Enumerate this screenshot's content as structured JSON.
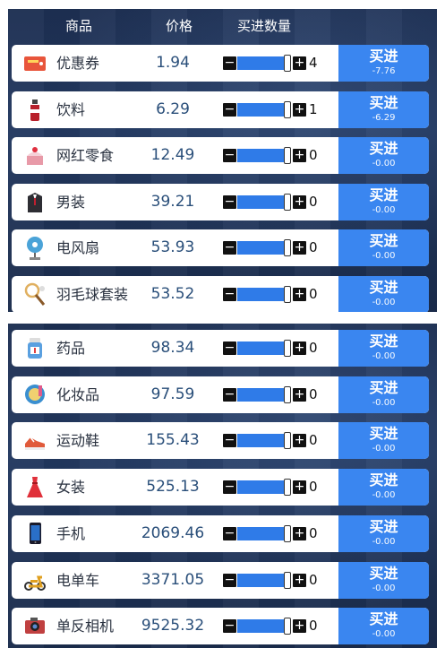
{
  "header": {
    "name": "商品",
    "price": "价格",
    "qty": "买进数量"
  },
  "buy_label": "买进",
  "minus": "−",
  "plus": "+",
  "panel1": [
    {
      "name": "优惠券",
      "price": "1.94",
      "qty": "4",
      "cost": "-7.76",
      "icon": "coupon-icon",
      "icon_color": "#e8553b",
      "level": 1.0
    },
    {
      "name": "饮料",
      "price": "6.29",
      "qty": "1",
      "cost": "-6.29",
      "icon": "drink-bottle-icon",
      "icon_color": "#b8202b",
      "level": 1.0
    },
    {
      "name": "网红零食",
      "price": "12.49",
      "qty": "0",
      "cost": "-0.00",
      "icon": "snack-cake-icon",
      "icon_color": "#e89aa8",
      "level": 1.0
    },
    {
      "name": "男装",
      "price": "39.21",
      "qty": "0",
      "cost": "-0.00",
      "icon": "mens-suit-icon",
      "icon_color": "#2d2d33",
      "level": 1.0
    },
    {
      "name": "电风扇",
      "price": "53.93",
      "qty": "0",
      "cost": "-0.00",
      "icon": "electric-fan-icon",
      "icon_color": "#4aa3d8",
      "level": 1.0
    },
    {
      "name": "羽毛球套装",
      "price": "53.52",
      "qty": "0",
      "cost": "-0.00",
      "icon": "badminton-icon",
      "icon_color": "#e0b060",
      "level": 1.0
    }
  ],
  "panel2": [
    {
      "name": "药品",
      "price": "98.34",
      "qty": "0",
      "cost": "-0.00",
      "icon": "medicine-bottle-icon",
      "icon_color": "#5aa0e0",
      "level": 1.0
    },
    {
      "name": "化妆品",
      "price": "97.59",
      "qty": "0",
      "cost": "-0.00",
      "icon": "cosmetics-icon",
      "icon_color": "#3a8fd0",
      "level": 1.0
    },
    {
      "name": "运动鞋",
      "price": "155.43",
      "qty": "0",
      "cost": "-0.00",
      "icon": "sneaker-icon",
      "icon_color": "#e05a3a",
      "level": 1.0
    },
    {
      "name": "女装",
      "price": "525.13",
      "qty": "0",
      "cost": "-0.00",
      "icon": "dress-icon",
      "icon_color": "#e0303a",
      "level": 1.0
    },
    {
      "name": "手机",
      "price": "2069.46",
      "qty": "0",
      "cost": "-0.00",
      "icon": "phone-icon",
      "icon_color": "#2a6fc8",
      "level": 1.0
    },
    {
      "name": "电单车",
      "price": "3371.05",
      "qty": "0",
      "cost": "-0.00",
      "icon": "scooter-icon",
      "icon_color": "#e0a020",
      "level": 1.0
    },
    {
      "name": "单反相机",
      "price": "9525.32",
      "qty": "0",
      "cost": "-0.00",
      "icon": "camera-icon",
      "icon_color": "#c04040",
      "level": 1.0
    }
  ]
}
